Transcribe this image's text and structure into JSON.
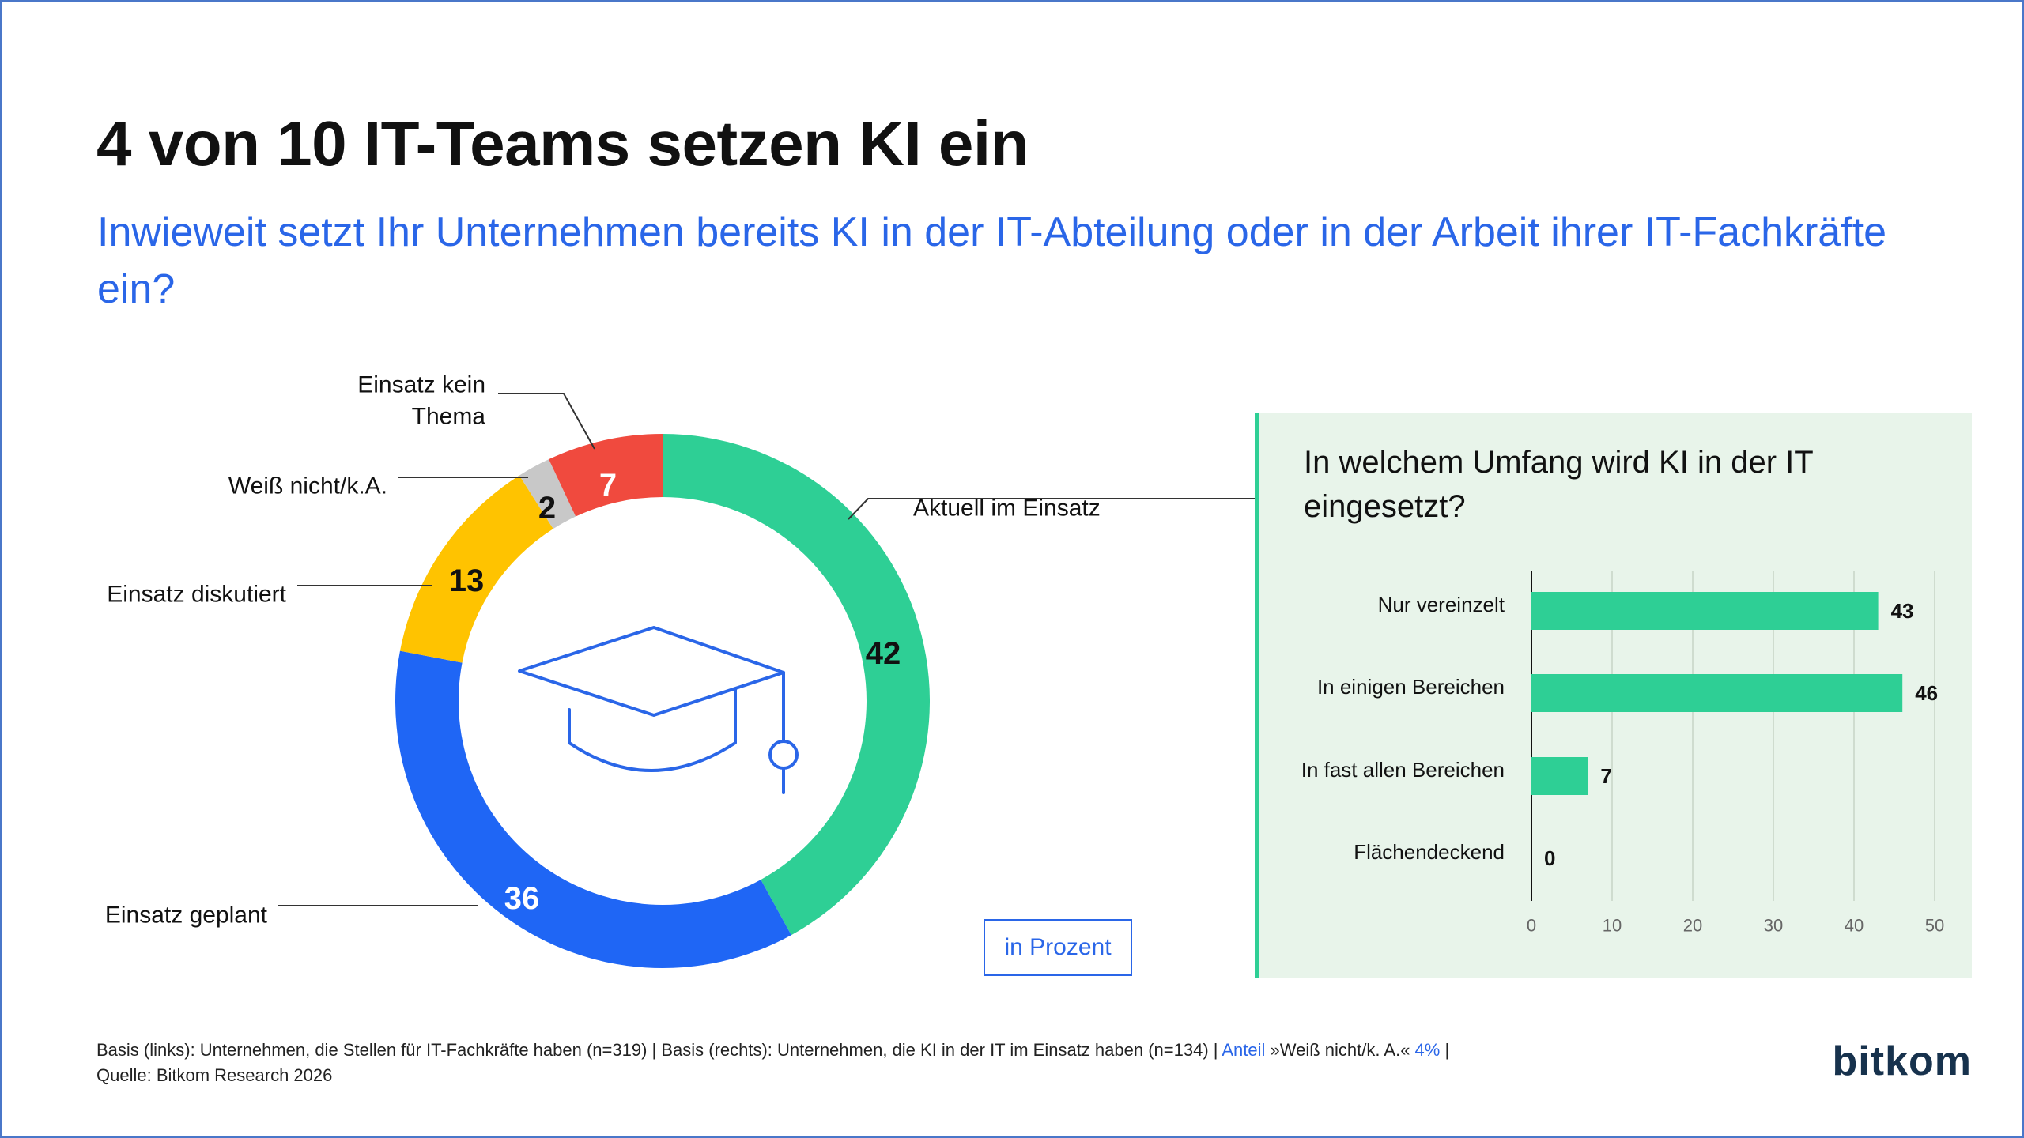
{
  "title": "4 von 10 IT-Teams setzen KI ein",
  "subtitle": "Inwieweit setzt Ihr Unternehmen bereits KI in der IT-Abteilung oder in der Arbeit ihrer IT-Fachkräfte ein?",
  "unit_label": "in Prozent",
  "footnote": {
    "line1_a": "Basis (links): Unternehmen, die Stellen für IT-Fachkräfte haben (n=319) | Basis (rechts): Unternehmen, die KI in der IT im Einsatz haben (n=134) | ",
    "line1_b": "Anteil",
    "line1_c": " »Weiß nicht/k.  A.« ",
    "line1_d": "4%",
    "line1_e": " |",
    "line2": "Quelle: Bitkom Research 2026"
  },
  "brand": "bitkom",
  "icon": "graduation-cap-icon",
  "chart_data": [
    {
      "type": "pie",
      "variant": "donut",
      "segments": [
        {
          "label": "Aktuell im Einsatz",
          "value": 42,
          "color": "#2ecf95"
        },
        {
          "label": "Einsatz geplant",
          "value": 36,
          "color": "#1f66f5"
        },
        {
          "label": "Einsatz diskutiert",
          "value": 13,
          "color": "#ffc300"
        },
        {
          "label": "Weiß nicht/k.A.",
          "value": 2,
          "color": "#c8c8c8"
        },
        {
          "label": "Einsatz kein Thema",
          "value": 7,
          "color": "#f04a3e"
        }
      ]
    },
    {
      "type": "bar",
      "orientation": "horizontal",
      "title": "In welchem Umfang wird KI in der IT eingesetzt?",
      "categories": [
        "Nur vereinzelt",
        "In einigen Bereichen",
        "In fast allen Bereichen",
        "Flächendeckend"
      ],
      "values": [
        43,
        46,
        7,
        0
      ],
      "xlim": [
        0,
        50
      ],
      "ticks": [
        0,
        10,
        20,
        30,
        40,
        50
      ],
      "grid": true,
      "bar_color": "#2ecf95"
    }
  ]
}
